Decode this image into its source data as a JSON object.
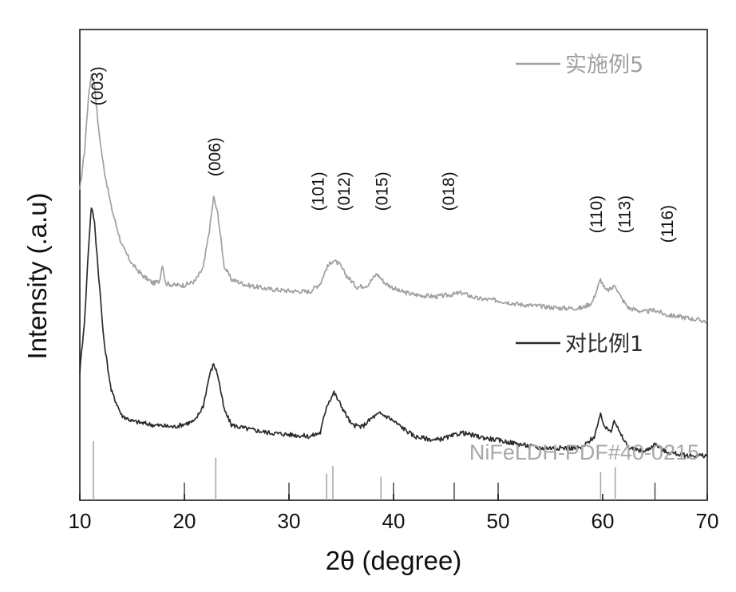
{
  "chart_data": {
    "type": "line",
    "title": "",
    "xlabel": "2θ (degree)",
    "ylabel": "Intensity (.a.u)",
    "xlim": [
      10,
      70
    ],
    "xticks": [
      10,
      20,
      30,
      40,
      50,
      60,
      70
    ],
    "xtick_labels": [
      "10",
      "20",
      "30",
      "40",
      "50",
      "60",
      "70"
    ],
    "y_ticks_shown": false,
    "grid": false,
    "legend_placement": "right, beside each curve",
    "series": [
      {
        "name": "实施例5",
        "color": "#a0a0a0",
        "points": [
          [
            10.0,
            0.64
          ],
          [
            10.5,
            0.76
          ],
          [
            10.8,
            0.88
          ],
          [
            11.1,
            0.945
          ],
          [
            11.4,
            0.92
          ],
          [
            11.8,
            0.8
          ],
          [
            12.3,
            0.7
          ],
          [
            13.0,
            0.6
          ],
          [
            14.0,
            0.5
          ],
          [
            15.0,
            0.45
          ],
          [
            16.0,
            0.42
          ],
          [
            17.0,
            0.4
          ],
          [
            17.6,
            0.405
          ],
          [
            17.9,
            0.45
          ],
          [
            18.2,
            0.4
          ],
          [
            19.0,
            0.395
          ],
          [
            20.0,
            0.395
          ],
          [
            21.0,
            0.405
          ],
          [
            21.8,
            0.44
          ],
          [
            22.4,
            0.54
          ],
          [
            22.8,
            0.625
          ],
          [
            23.2,
            0.58
          ],
          [
            23.8,
            0.445
          ],
          [
            24.5,
            0.41
          ],
          [
            26.0,
            0.395
          ],
          [
            28.0,
            0.385
          ],
          [
            30.0,
            0.38
          ],
          [
            32.0,
            0.378
          ],
          [
            33.0,
            0.4
          ],
          [
            33.6,
            0.44
          ],
          [
            34.2,
            0.46
          ],
          [
            34.8,
            0.45
          ],
          [
            35.5,
            0.42
          ],
          [
            36.5,
            0.39
          ],
          [
            37.5,
            0.395
          ],
          [
            38.4,
            0.425
          ],
          [
            39.2,
            0.4
          ],
          [
            40.5,
            0.38
          ],
          [
            42.0,
            0.37
          ],
          [
            44.0,
            0.365
          ],
          [
            45.5,
            0.37
          ],
          [
            46.5,
            0.375
          ],
          [
            48.0,
            0.36
          ],
          [
            50.0,
            0.355
          ],
          [
            52.0,
            0.345
          ],
          [
            54.0,
            0.34
          ],
          [
            56.0,
            0.335
          ],
          [
            58.0,
            0.335
          ],
          [
            59.0,
            0.35
          ],
          [
            59.8,
            0.41
          ],
          [
            60.3,
            0.38
          ],
          [
            60.8,
            0.385
          ],
          [
            61.2,
            0.395
          ],
          [
            61.8,
            0.36
          ],
          [
            62.5,
            0.335
          ],
          [
            64.0,
            0.325
          ],
          [
            65.0,
            0.33
          ],
          [
            66.0,
            0.318
          ],
          [
            68.0,
            0.31
          ],
          [
            70.0,
            0.3
          ]
        ]
      },
      {
        "name": "对比例1",
        "color": "#2b2b2b",
        "points": [
          [
            10.0,
            0.17
          ],
          [
            10.5,
            0.32
          ],
          [
            10.8,
            0.48
          ],
          [
            11.1,
            0.6
          ],
          [
            11.4,
            0.56
          ],
          [
            11.8,
            0.42
          ],
          [
            12.3,
            0.25
          ],
          [
            13.0,
            0.12
          ],
          [
            14.0,
            0.055
          ],
          [
            15.0,
            0.04
          ],
          [
            17.0,
            0.03
          ],
          [
            19.0,
            0.025
          ],
          [
            21.0,
            0.04
          ],
          [
            21.8,
            0.08
          ],
          [
            22.4,
            0.16
          ],
          [
            22.8,
            0.19
          ],
          [
            23.2,
            0.16
          ],
          [
            23.8,
            0.07
          ],
          [
            24.5,
            0.03
          ],
          [
            26.0,
            0.02
          ],
          [
            28.0,
            0.01
          ],
          [
            30.0,
            0.005
          ],
          [
            32.0,
            0.0
          ],
          [
            33.0,
            0.01
          ],
          [
            33.6,
            0.08
          ],
          [
            34.3,
            0.115
          ],
          [
            35.0,
            0.08
          ],
          [
            36.0,
            0.03
          ],
          [
            37.0,
            0.025
          ],
          [
            38.0,
            0.05
          ],
          [
            38.7,
            0.06
          ],
          [
            39.5,
            0.05
          ],
          [
            40.5,
            0.03
          ],
          [
            42.0,
            0.0
          ],
          [
            44.0,
            -0.01
          ],
          [
            45.5,
            0.0
          ],
          [
            46.5,
            0.01
          ],
          [
            48.0,
            0.0
          ],
          [
            50.0,
            -0.01
          ],
          [
            52.0,
            -0.02
          ],
          [
            54.0,
            -0.03
          ],
          [
            56.0,
            -0.03
          ],
          [
            58.0,
            -0.03
          ],
          [
            59.2,
            0.0
          ],
          [
            59.8,
            0.055
          ],
          [
            60.3,
            0.02
          ],
          [
            60.8,
            0.015
          ],
          [
            61.1,
            0.045
          ],
          [
            61.6,
            0.01
          ],
          [
            62.5,
            -0.03
          ],
          [
            64.0,
            -0.04
          ],
          [
            65.0,
            -0.02
          ],
          [
            66.0,
            -0.04
          ],
          [
            68.0,
            -0.05
          ],
          [
            70.0,
            -0.05
          ]
        ]
      }
    ],
    "peak_labels": [
      {
        "text": "(003)",
        "x": 11.8,
        "y": 0.915
      },
      {
        "text": "(006)",
        "x": 23.0,
        "y": 0.73
      },
      {
        "text": "(101)",
        "x": 32.9,
        "y": 0.64
      },
      {
        "text": "(012)",
        "x": 35.4,
        "y": 0.64
      },
      {
        "text": "(015)",
        "x": 39.0,
        "y": 0.64
      },
      {
        "text": "(018)",
        "x": 45.4,
        "y": 0.64
      },
      {
        "text": "(110)",
        "x": 59.5,
        "y": 0.58
      },
      {
        "text": "(113)",
        "x": 62.2,
        "y": 0.58
      },
      {
        "text": "(116)",
        "x": 66.3,
        "y": 0.555
      }
    ],
    "reference": {
      "label": "NiFeLDH-PDF#40-0215",
      "color": "#a8a8a8",
      "lines": [
        {
          "x": 11.3,
          "height": 1.0
        },
        {
          "x": 20.0,
          "height": 0.3
        },
        {
          "x": 23.0,
          "height": 0.72
        },
        {
          "x": 30.0,
          "height": 0.3
        },
        {
          "x": 33.6,
          "height": 0.45
        },
        {
          "x": 34.2,
          "height": 0.58
        },
        {
          "x": 38.8,
          "height": 0.4
        },
        {
          "x": 40.0,
          "height": 0.3
        },
        {
          "x": 45.8,
          "height": 0.3
        },
        {
          "x": 50.0,
          "height": 0.3
        },
        {
          "x": 59.8,
          "height": 0.48
        },
        {
          "x": 61.2,
          "height": 0.56
        },
        {
          "x": 65.0,
          "height": 0.3
        }
      ]
    }
  }
}
